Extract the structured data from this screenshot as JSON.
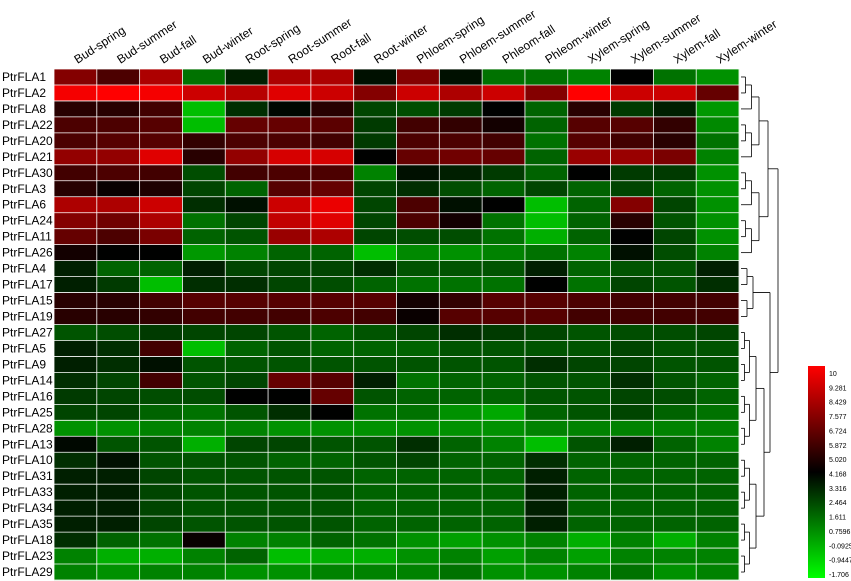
{
  "chart_data": {
    "type": "heatmap",
    "title": "",
    "xlabel": "",
    "ylabel": "",
    "columns": [
      "Bud-spring",
      "Bud-summer",
      "Bud-fall",
      "Bud-winter",
      "Root-spring",
      "Root-summer",
      "Root-fall",
      "Root-winter",
      "Phloem-spring",
      "Phloem-summer",
      "Phleom-fall",
      "Phleom-winter",
      "Xylem-spring",
      "Xylem-summer",
      "Xylem-fall",
      "Xylem-winter"
    ],
    "rows": [
      "PtrFLA1",
      "PtrFLA2",
      "PtrFLA8",
      "PtrFLA22",
      "PtrFLA20",
      "PtrFLA21",
      "PtrFLA30",
      "PtrFLA3",
      "PtrFLA6",
      "PtrFLA24",
      "PtrFLA11",
      "PtrFLA26",
      "PtrFLA4",
      "PtrFLA17",
      "PtrFLA15",
      "PtrFLA19",
      "PtrFLA27",
      "PtrFLA5",
      "PtrFLA9",
      "PtrFLA14",
      "PtrFLA16",
      "PtrFLA25",
      "PtrFLA28",
      "PtrFLA13",
      "PtrFLA10",
      "PtrFLA31",
      "PtrFLA33",
      "PtrFLA34",
      "PtrFLA35",
      "PtrFLA18",
      "PtrFLA23",
      "PtrFLA29"
    ],
    "values": [
      [
        7.6,
        6.5,
        8.4,
        2.0,
        4.2,
        8.4,
        8.4,
        4.6,
        7.6,
        4.6,
        2.0,
        2.0,
        1.6,
        5.0,
        2.0,
        1.2
      ],
      [
        9.8,
        10.0,
        9.8,
        9.0,
        8.6,
        9.4,
        9.0,
        7.6,
        9.0,
        8.4,
        9.0,
        7.6,
        10.0,
        9.0,
        9.0,
        7.0
      ],
      [
        5.8,
        5.8,
        6.3,
        0.0,
        3.8,
        4.8,
        5.8,
        3.2,
        3.0,
        3.5,
        5.0,
        2.4,
        5.8,
        3.5,
        4.2,
        1.0
      ],
      [
        6.5,
        6.5,
        6.7,
        0.0,
        7.0,
        7.0,
        6.8,
        3.5,
        6.3,
        6.0,
        5.4,
        2.4,
        6.7,
        6.7,
        6.0,
        1.4
      ],
      [
        6.5,
        6.7,
        6.7,
        6.0,
        6.5,
        6.5,
        6.3,
        3.5,
        6.5,
        6.5,
        6.3,
        2.0,
        6.7,
        6.3,
        5.8,
        2.0
      ],
      [
        7.9,
        7.9,
        9.4,
        5.8,
        7.9,
        9.2,
        9.2,
        5.0,
        7.0,
        7.2,
        7.0,
        2.4,
        8.0,
        8.0,
        7.4,
        1.6
      ],
      [
        6.3,
        6.5,
        6.3,
        3.0,
        6.3,
        6.5,
        6.5,
        1.6,
        4.6,
        4.2,
        3.5,
        2.4,
        5.0,
        3.5,
        3.5,
        1.2
      ],
      [
        5.8,
        5.2,
        5.6,
        3.2,
        2.4,
        6.7,
        7.0,
        3.2,
        3.8,
        3.0,
        2.4,
        3.2,
        2.4,
        3.2,
        2.4,
        1.2
      ],
      [
        8.4,
        8.4,
        9.0,
        3.8,
        4.6,
        9.0,
        9.6,
        3.2,
        6.5,
        4.6,
        5.0,
        0.0,
        2.4,
        7.6,
        3.2,
        1.2
      ],
      [
        7.6,
        7.2,
        8.4,
        2.0,
        3.2,
        8.8,
        9.4,
        3.2,
        6.5,
        5.4,
        2.0,
        0.0,
        2.4,
        5.8,
        2.8,
        1.2
      ],
      [
        7.0,
        6.5,
        7.4,
        2.4,
        2.8,
        8.0,
        8.4,
        3.2,
        3.0,
        3.0,
        2.0,
        0.4,
        2.4,
        5.0,
        3.2,
        1.2
      ],
      [
        5.4,
        5.0,
        5.0,
        1.0,
        1.6,
        2.4,
        2.4,
        0.0,
        1.4,
        1.2,
        1.6,
        2.0,
        1.6,
        4.6,
        3.0,
        1.6
      ],
      [
        4.2,
        2.4,
        2.4,
        4.2,
        3.2,
        3.2,
        3.2,
        3.8,
        2.8,
        2.8,
        2.8,
        4.2,
        2.4,
        2.8,
        2.8,
        4.2
      ],
      [
        4.2,
        3.5,
        0.0,
        3.8,
        3.8,
        3.2,
        3.0,
        2.4,
        2.0,
        2.0,
        2.0,
        5.0,
        2.0,
        3.2,
        2.8,
        3.8
      ],
      [
        5.8,
        5.8,
        6.3,
        6.7,
        6.7,
        6.7,
        6.7,
        6.7,
        5.4,
        6.0,
        6.7,
        6.7,
        6.5,
        6.3,
        6.3,
        6.3
      ],
      [
        5.8,
        5.8,
        6.0,
        6.3,
        6.3,
        6.3,
        6.5,
        6.3,
        5.2,
        6.7,
        6.7,
        6.7,
        6.3,
        6.3,
        6.3,
        6.3
      ],
      [
        2.8,
        3.0,
        3.5,
        3.2,
        3.2,
        2.8,
        2.4,
        2.8,
        3.2,
        3.8,
        3.5,
        3.2,
        2.8,
        3.0,
        3.0,
        3.2
      ],
      [
        4.2,
        3.8,
        6.3,
        0.0,
        2.4,
        2.8,
        2.4,
        2.4,
        2.4,
        2.8,
        2.8,
        2.8,
        2.8,
        3.2,
        2.8,
        2.8
      ],
      [
        4.2,
        3.8,
        4.6,
        2.8,
        2.8,
        2.8,
        2.8,
        2.8,
        2.8,
        2.8,
        2.8,
        3.8,
        3.2,
        3.2,
        2.8,
        2.8
      ],
      [
        3.8,
        3.2,
        6.3,
        2.8,
        3.2,
        7.0,
        6.7,
        4.2,
        2.0,
        2.4,
        2.4,
        2.8,
        2.8,
        3.8,
        2.8,
        2.4
      ],
      [
        3.5,
        3.2,
        3.0,
        3.0,
        5.0,
        5.0,
        7.0,
        2.8,
        2.4,
        2.4,
        2.4,
        2.8,
        2.8,
        3.2,
        3.0,
        2.4
      ],
      [
        3.2,
        3.2,
        2.4,
        2.0,
        2.8,
        3.8,
        5.0,
        2.0,
        2.0,
        1.2,
        0.6,
        2.4,
        2.8,
        3.2,
        2.4,
        2.0
      ],
      [
        1.2,
        1.2,
        1.6,
        1.6,
        1.6,
        1.2,
        1.2,
        1.2,
        1.2,
        1.2,
        1.2,
        1.6,
        1.6,
        1.6,
        1.6,
        1.6
      ],
      [
        4.8,
        2.8,
        2.8,
        0.4,
        3.2,
        3.2,
        2.8,
        2.8,
        3.8,
        2.4,
        1.6,
        0.0,
        2.8,
        4.2,
        2.4,
        1.6
      ],
      [
        3.8,
        4.6,
        2.8,
        2.8,
        2.8,
        2.4,
        2.4,
        2.8,
        3.2,
        2.4,
        2.4,
        3.8,
        2.4,
        2.4,
        2.4,
        2.4
      ],
      [
        4.2,
        4.2,
        3.2,
        2.8,
        2.8,
        2.8,
        2.8,
        2.4,
        2.4,
        2.4,
        2.4,
        4.2,
        2.4,
        2.4,
        2.4,
        2.4
      ],
      [
        4.2,
        4.2,
        3.2,
        2.8,
        2.8,
        2.8,
        2.8,
        2.4,
        2.4,
        2.4,
        2.4,
        4.2,
        2.4,
        2.4,
        2.4,
        2.4
      ],
      [
        4.2,
        4.2,
        3.2,
        2.8,
        2.8,
        2.8,
        2.8,
        2.4,
        2.4,
        2.4,
        2.4,
        4.2,
        2.4,
        2.4,
        2.4,
        2.4
      ],
      [
        4.2,
        4.2,
        3.2,
        2.8,
        2.8,
        2.8,
        2.8,
        2.4,
        2.4,
        2.4,
        2.4,
        4.2,
        2.4,
        2.4,
        2.4,
        2.4
      ],
      [
        3.8,
        2.4,
        2.0,
        5.2,
        1.6,
        1.6,
        2.4,
        2.0,
        1.2,
        0.8,
        1.2,
        1.6,
        0.4,
        1.6,
        0.4,
        1.6
      ],
      [
        1.6,
        0.4,
        0.4,
        1.6,
        2.4,
        0.0,
        0.4,
        0.4,
        1.2,
        1.6,
        0.8,
        1.6,
        0.8,
        1.6,
        1.6,
        1.6
      ],
      [
        1.6,
        1.2,
        1.6,
        1.6,
        1.2,
        1.2,
        1.6,
        1.6,
        1.6,
        2.0,
        1.2,
        1.2,
        1.6,
        2.0,
        1.2,
        1.6
      ]
    ],
    "color_scale": {
      "min": -1.706,
      "mid": 5.02,
      "max": 10,
      "low_color": "#00ff00",
      "mid_color": "#000000",
      "high_color": "#ff0000"
    },
    "legend_ticks": [
      "10",
      "9.281",
      "8.429",
      "7.577",
      "6.724",
      "5.872",
      "5.020",
      "4.168",
      "3.316",
      "2.464",
      "1.611",
      "0.7596",
      "-0.0925",
      "-0.9447",
      "-1.706"
    ],
    "dendrogram": {
      "clusters": [
        [
          "PtrFLA1",
          "PtrFLA2",
          "PtrFLA8",
          "PtrFLA22",
          "PtrFLA20",
          "PtrFLA21",
          "PtrFLA30",
          "PtrFLA3",
          "PtrFLA6",
          "PtrFLA24",
          "PtrFLA11",
          "PtrFLA26"
        ],
        [
          "PtrFLA4",
          "PtrFLA17"
        ],
        [
          "PtrFLA15",
          "PtrFLA19"
        ],
        [
          "PtrFLA27",
          "PtrFLA5",
          "PtrFLA9",
          "PtrFLA14",
          "PtrFLA16",
          "PtrFLA25",
          "PtrFLA28",
          "PtrFLA13",
          "PtrFLA10",
          "PtrFLA31",
          "PtrFLA33",
          "PtrFLA34",
          "PtrFLA35",
          "PtrFLA18",
          "PtrFLA23",
          "PtrFLA29"
        ]
      ]
    }
  }
}
